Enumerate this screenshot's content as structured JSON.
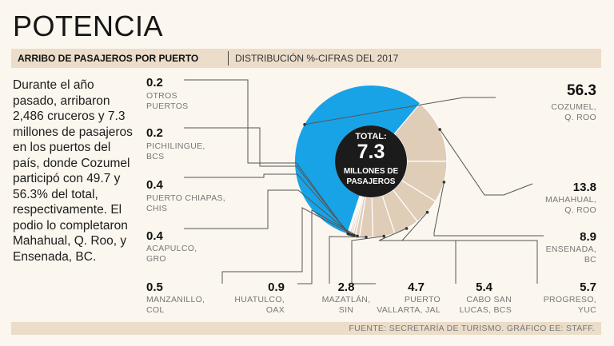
{
  "title": "POTENCIA",
  "subtitle_main": "ARRIBO DE PASAJEROS POR PUERTO",
  "subtitle_sub": "DISTRIBUCIÓN %-CIFRAS DEL 2017",
  "description": "Durante el año pasado, arribaron 2,486 cruceros y 7.3 millones de pasajeros en los puertos del país, donde Cozumel participó con 49.7 y 56.3% del total, respectivamente. El podio lo completaron Mahahual, Q. Roo, y Ensenada, BC.",
  "source": "FUENTE: SECRETARÍA DE TURISMO.  GRÁFICO EE: STAFF.",
  "center": {
    "label_top": "TOTAL:",
    "value": "7.3",
    "label_bottom_1": "MILLONES DE",
    "label_bottom_2": "PASAJEROS"
  },
  "colors": {
    "highlight": "#18a3e6",
    "segment": "#dfcdb8",
    "center": "#1b1b1b",
    "line": "#555555"
  },
  "chart_data": {
    "type": "pie",
    "title": "ARRIBO DE PASAJEROS POR PUERTO",
    "unit": "%",
    "total": "7.3 millones de pasajeros",
    "categories": [
      "COZUMEL, Q. ROO",
      "MAHAHUAL, Q. ROO",
      "ENSENADA, BC",
      "PROGRESO, YUC",
      "CABO SAN LUCAS, BCS",
      "PUERTO VALLARTA, JAL",
      "MAZATLÁN, SIN",
      "HUATULCO, OAX",
      "MANZANILLO, COL",
      "ACAPULCO, GRO",
      "PUERTO CHIAPAS, CHIS",
      "PICHILINGUE, BCS",
      "OTROS PUERTOS"
    ],
    "values": [
      56.3,
      13.8,
      8.9,
      5.7,
      5.4,
      4.7,
      2.8,
      0.9,
      0.5,
      0.4,
      0.4,
      0.2,
      0.2
    ]
  },
  "labels": {
    "cozumel": {
      "value": "56.3",
      "line1": "COZUMEL,",
      "line2": "Q. ROO"
    },
    "mahahual": {
      "value": "13.8",
      "line1": "MAHAHUAL,",
      "line2": "Q. ROO"
    },
    "ensenada": {
      "value": "8.9",
      "line1": "ENSENADA,",
      "line2": "BC"
    },
    "progreso": {
      "value": "5.7",
      "line1": "PROGRESO,",
      "line2": "YUC"
    },
    "cabo": {
      "value": "5.4",
      "line1": "CABO SAN",
      "line2": "LUCAS, BCS"
    },
    "vallarta": {
      "value": "4.7",
      "line1": "PUERTO",
      "line2": "VALLARTA, JAL"
    },
    "mazatlan": {
      "value": "2.8",
      "line1": "MAZATLÁN,",
      "line2": "SIN"
    },
    "huatulco": {
      "value": "0.9",
      "line1": "HUATULCO,",
      "line2": "OAX"
    },
    "manzanillo": {
      "value": "0.5",
      "line1": "MANZANILLO,",
      "line2": "COL"
    },
    "acapulco": {
      "value": "0.4",
      "line1": "ACAPULCO,",
      "line2": "GRO"
    },
    "chiapas": {
      "value": "0.4",
      "line1": "PUERTO CHIAPAS,",
      "line2": "CHIS"
    },
    "pichilingue": {
      "value": "0.2",
      "line1": "PICHILINGUE,",
      "line2": "BCS"
    },
    "otros": {
      "value": "0.2",
      "line1": "OTROS",
      "line2": "PUERTOS"
    }
  }
}
